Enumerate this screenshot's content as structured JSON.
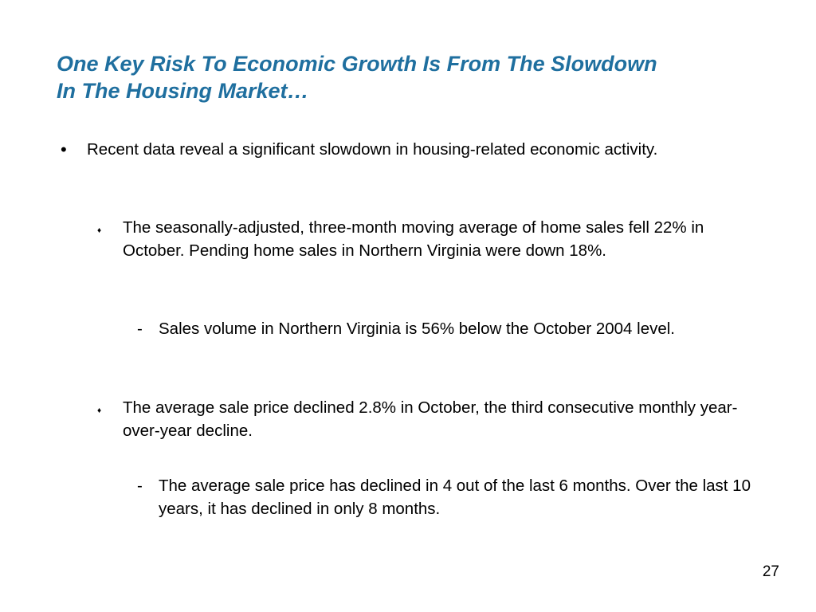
{
  "slide": {
    "title_line1": "One Key Risk To Economic Growth Is From The Slowdown",
    "title_line2": "In The Housing Market…",
    "bullets": [
      {
        "marker": "•",
        "text": "Recent data reveal a significant slowdown in housing-related economic activity."
      },
      {
        "marker": "♦",
        "text": "The seasonally-adjusted, three-month moving average of home sales fell 22% in October.  Pending home sales in Northern Virginia were down 18%."
      },
      {
        "marker": "-",
        "text": "Sales volume in Northern Virginia is 56% below the October 2004 level."
      },
      {
        "marker": "♦",
        "text": "The average sale price declined 2.8% in October, the third consecutive monthly year-over-year decline."
      },
      {
        "marker": "-",
        "text": "The average sale price has declined in 4 out of the last 6 months. Over the last 10 years, it has declined in only 8 months."
      }
    ],
    "page_number": "27"
  },
  "colors": {
    "title": "#1f6f9f",
    "body_text": "#000000",
    "background": "#ffffff"
  }
}
